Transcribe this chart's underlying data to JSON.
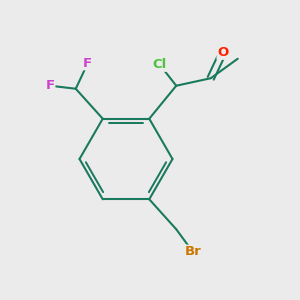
{
  "bg_color": "#ebebeb",
  "bond_color": "#1a7a5e",
  "bond_width": 1.5,
  "atom_colors": {
    "Cl": "#50c040",
    "F": "#cc44cc",
    "O": "#ff2200",
    "Br": "#cc7700"
  },
  "font_size": 9.5
}
